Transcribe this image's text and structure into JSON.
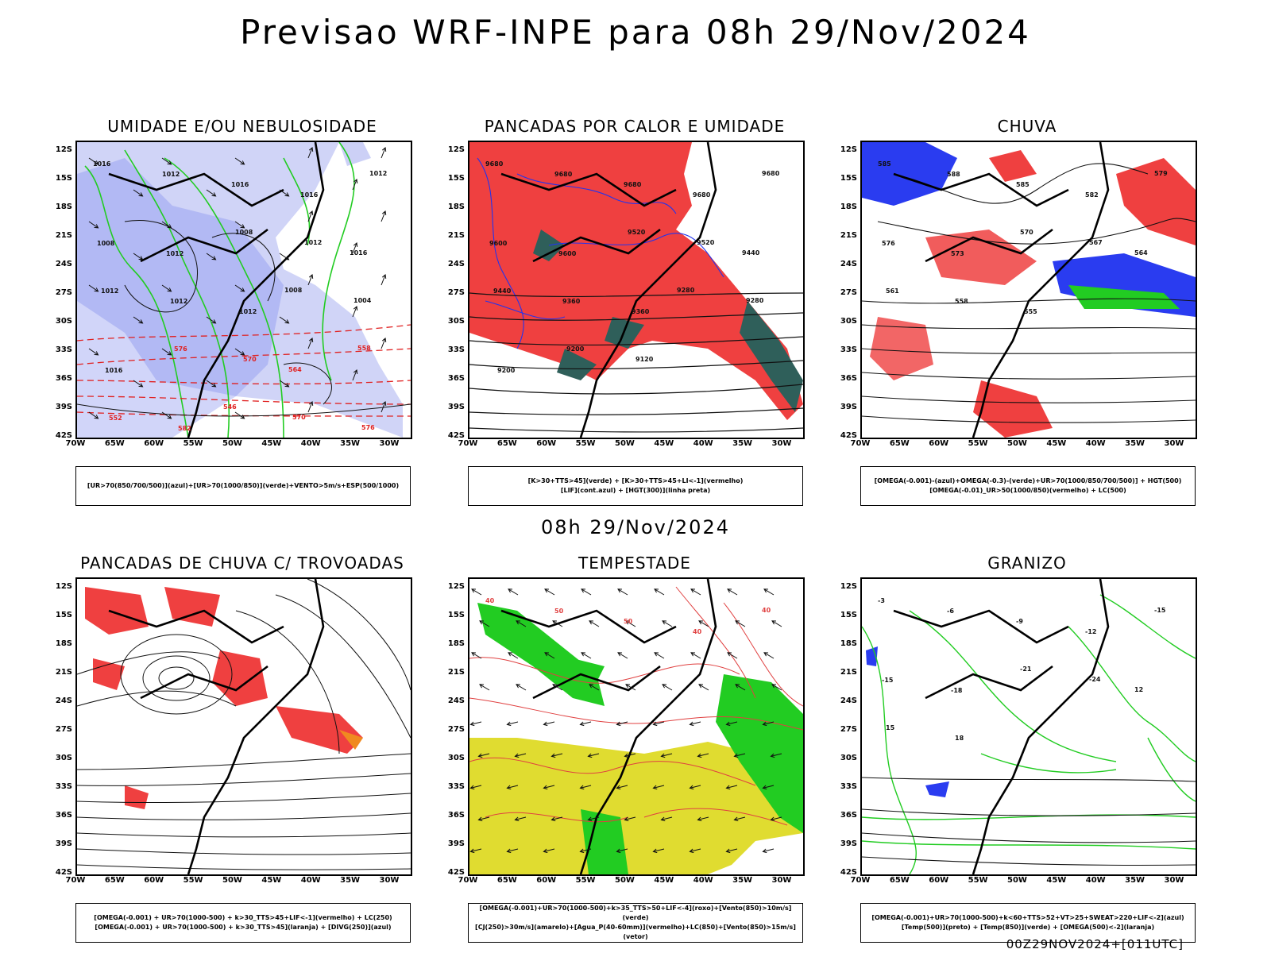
{
  "header": {
    "title": "Previsao WRF-INPE  para 08h 29/Nov/2024",
    "subtitle": "08h 29/Nov/2024",
    "footer": "00Z29NOV2024+[011UTC]"
  },
  "axes": {
    "lat_labels": [
      "12S",
      "15S",
      "18S",
      "21S",
      "24S",
      "27S",
      "30S",
      "33S",
      "36S",
      "39S",
      "42S"
    ],
    "lon_labels": [
      "70W",
      "65W",
      "60W",
      "55W",
      "50W",
      "45W",
      "40W",
      "35W",
      "30W"
    ]
  },
  "panels": [
    {
      "title": "UMIDADE E/OU NEBULOSIDADE",
      "legend": [
        "[UR>70(850/700/500)](azul)+[UR>70(1000/850)](verde)+VENTO>5m/s+ESP(500/1000)"
      ],
      "contour_labels": [
        "1016",
        "1012",
        "1016",
        "1016",
        "1012",
        "1008",
        "1012",
        "1008",
        "1012",
        "1016",
        "1012",
        "1012",
        "1012",
        "1008",
        "1004",
        "1016",
        "576",
        "570",
        "564",
        "558",
        "552",
        "582",
        "546",
        "570",
        "576"
      ]
    },
    {
      "title": "PANCADAS POR CALOR E UMIDADE",
      "legend": [
        "[K>30+TTS>45](verde) + [K>30+TTS>45+LI<-1](vermelho)",
        "[LIF](cont.azul) + [HGT(300)](linha preta)"
      ],
      "contour_labels": [
        "9680",
        "9680",
        "9680",
        "9680",
        "9680",
        "9600",
        "9600",
        "9520",
        "9520",
        "9440",
        "9440",
        "9360",
        "9360",
        "9280",
        "9280",
        "9200",
        "9200",
        "9120"
      ]
    },
    {
      "title": "CHUVA",
      "legend": [
        "[OMEGA(-0.001)-(azul)+OMEGA(-0.3)-(verde)+UR>70(1000/850/700/500)] + HGT(500)",
        "[OMEGA(-0.01)_UR>50(1000/850)(vermelho) + LC(500)"
      ],
      "contour_labels": [
        "585",
        "588",
        "585",
        "582",
        "579",
        "576",
        "573",
        "570",
        "567",
        "564",
        "561",
        "558",
        "555"
      ]
    },
    {
      "title": "PANCADAS DE CHUVA C/ TROVOADAS",
      "legend": [
        "[OMEGA(-0.001) + UR>70(1000-500) + k>30_TTS>45+LIF<-1](vermelho) + LC(250)",
        "[OMEGA(-0.001) + UR>70(1000-500) + k>30_TTS>45](laranja) + [DIVG(250)](azul)"
      ],
      "contour_labels": []
    },
    {
      "title": "TEMPESTADE",
      "legend": [
        "[OMEGA(-0.001)+UR>70(1000-500)+k>35_TTS>50+LIF<-4](roxo)+[Vento(850)>10m/s](verde)",
        "[CJ(250)>30m/s](amarelo)+[Agua_P(40-60mm)](vermelho)+LC(850)+[Vento(850)>15m/s](vetor)"
      ],
      "contour_labels": [
        "40",
        "50",
        "50",
        "40",
        "40"
      ]
    },
    {
      "title": "GRANIZO",
      "legend": [
        "[OMEGA(-0.001)+UR>70(1000-500)+k<60+TTS>52+VT>25+SWEAT>220+LIF<-2](azul)",
        "[Temp(500)](preto) + [Temp(850)](verde) + [OMEGA(500)<-2](laranja)"
      ],
      "contour_labels": [
        "-3",
        "-6",
        "-9",
        "-12",
        "-15",
        "-15",
        "-18",
        "-21",
        "-24",
        "12",
        "15",
        "18"
      ]
    }
  ]
}
